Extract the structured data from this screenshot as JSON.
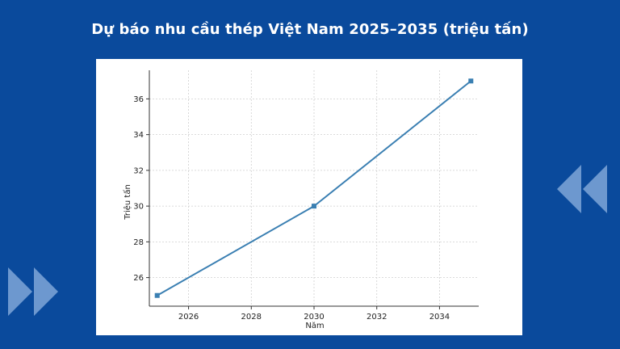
{
  "page": {
    "title": "Dự báo nhu cầu thép Việt Nam 2025–2035 (triệu tấn)",
    "background_color": "#0a4a9c",
    "decoration_icons": [
      "rewind-icon",
      "fast-forward-icon"
    ]
  },
  "chart_data": {
    "type": "line",
    "title": "",
    "xlabel": "Năm",
    "ylabel": "Triệu tấn",
    "x": [
      2025,
      2030,
      2035
    ],
    "series": [
      {
        "values": [
          25,
          30,
          37
        ],
        "color": "#3a7fb2"
      }
    ],
    "xlim": [
      2024.75,
      2035.25
    ],
    "ylim": [
      24.4,
      37.6
    ],
    "xticks": [
      2026,
      2028,
      2030,
      2032,
      2034
    ],
    "yticks": [
      26,
      28,
      30,
      32,
      34,
      36
    ],
    "grid": true,
    "legend": "none"
  }
}
